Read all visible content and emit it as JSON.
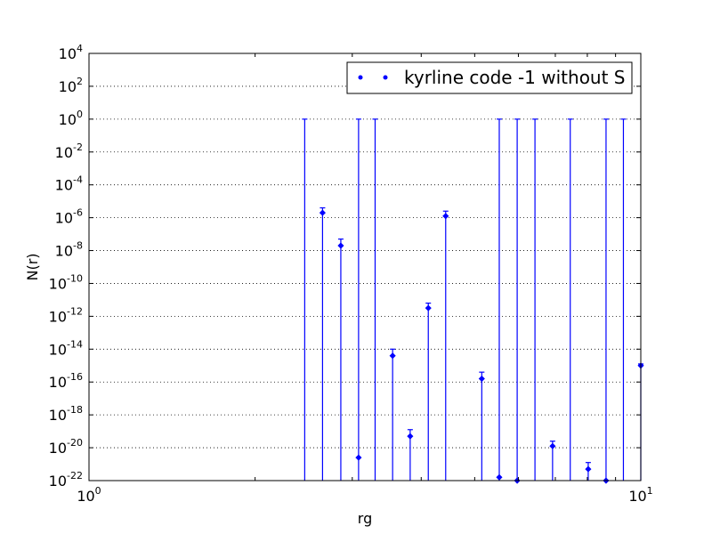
{
  "chart_data": {
    "type": "scatter",
    "title": "",
    "xlabel": "rg",
    "ylabel": "N(r)",
    "xscale": "log",
    "yscale": "log",
    "xlim": [
      1,
      10
    ],
    "ylim_exponents": [
      -22,
      4
    ],
    "grid": "horizontal dotted",
    "legend_position": "top-right",
    "series_color": "#0000ff",
    "x_ticks": [
      {
        "value": 1,
        "base": "10",
        "exp": "0"
      },
      {
        "value": 10,
        "base": "10",
        "exp": "1"
      }
    ],
    "y_ticks": [
      {
        "base": "10",
        "exp": "4",
        "e": 4
      },
      {
        "base": "10",
        "exp": "2",
        "e": 2
      },
      {
        "base": "10",
        "exp": "0",
        "e": 0
      },
      {
        "base": "10",
        "exp": "-2",
        "e": -2
      },
      {
        "base": "10",
        "exp": "-4",
        "e": -4
      },
      {
        "base": "10",
        "exp": "-6",
        "e": -6
      },
      {
        "base": "10",
        "exp": "-8",
        "e": -8
      },
      {
        "base": "10",
        "exp": "-10",
        "e": -10
      },
      {
        "base": "10",
        "exp": "-12",
        "e": -12
      },
      {
        "base": "10",
        "exp": "-14",
        "e": -14
      },
      {
        "base": "10",
        "exp": "-16",
        "e": -16
      },
      {
        "base": "10",
        "exp": "-18",
        "e": -18
      },
      {
        "base": "10",
        "exp": "-20",
        "e": -20
      },
      {
        "base": "10",
        "exp": "-22",
        "e": -22
      }
    ],
    "series": [
      {
        "name": "kyrline code -1 without S",
        "points": [
          {
            "x": 2.46,
            "y_exp": null,
            "err_top_exp": 0.0
          },
          {
            "x": 2.65,
            "y_exp": -5.7,
            "err_top_exp": -5.4
          },
          {
            "x": 2.86,
            "y_exp": -7.7,
            "err_top_exp": -7.3
          },
          {
            "x": 3.08,
            "y_exp": -20.6,
            "err_top_exp": 0.0
          },
          {
            "x": 3.3,
            "y_exp": null,
            "err_top_exp": 0.0
          },
          {
            "x": 3.55,
            "y_exp": -14.4,
            "err_top_exp": -14.0
          },
          {
            "x": 3.82,
            "y_exp": -19.3,
            "err_top_exp": -18.9
          },
          {
            "x": 4.12,
            "y_exp": -11.5,
            "err_top_exp": -11.2
          },
          {
            "x": 4.43,
            "y_exp": -5.9,
            "err_top_exp": -5.6
          },
          {
            "x": 5.15,
            "y_exp": -15.8,
            "err_top_exp": -15.4
          },
          {
            "x": 5.54,
            "y_exp": -21.8,
            "err_top_exp": 0.0
          },
          {
            "x": 5.97,
            "y_exp": -22.0,
            "err_top_exp": 0.0
          },
          {
            "x": 6.43,
            "y_exp": null,
            "err_top_exp": 0.0
          },
          {
            "x": 6.92,
            "y_exp": -19.9,
            "err_top_exp": -19.6
          },
          {
            "x": 7.45,
            "y_exp": null,
            "err_top_exp": 0.0
          },
          {
            "x": 8.03,
            "y_exp": -21.3,
            "err_top_exp": -20.9
          },
          {
            "x": 8.65,
            "y_exp": -22.0,
            "err_top_exp": 0.0
          },
          {
            "x": 9.3,
            "y_exp": null,
            "err_top_exp": 0.0
          },
          {
            "x": 10.0,
            "y_exp": -15.0,
            "err_top_exp": -14.9
          }
        ]
      }
    ]
  }
}
